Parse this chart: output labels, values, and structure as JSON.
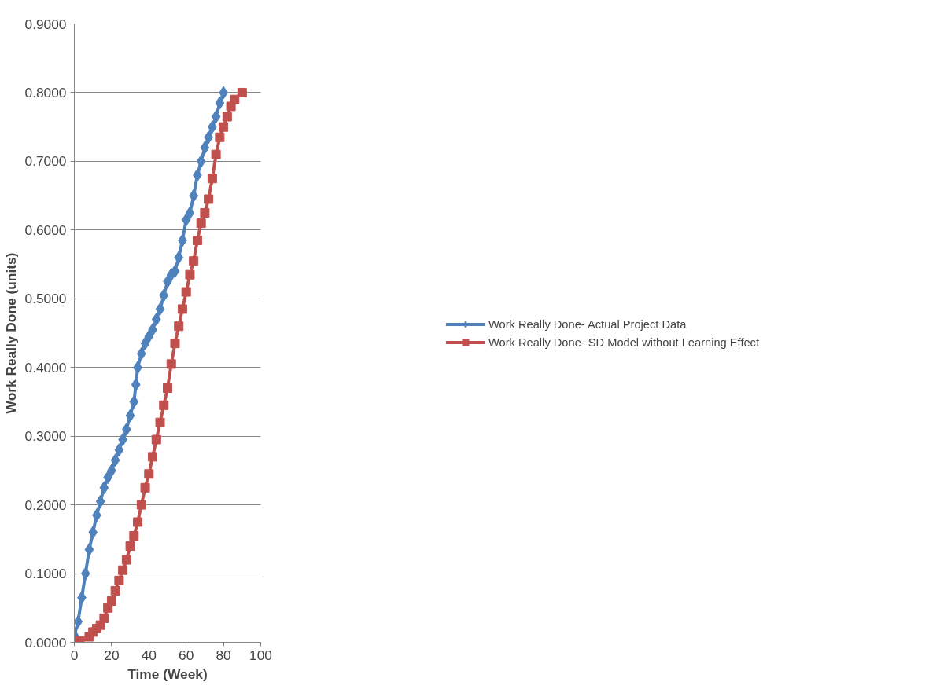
{
  "chart_data": {
    "type": "line",
    "xlabel": "Time (Week)",
    "ylabel": "Work Really Done (units)",
    "xlim": [
      0,
      100
    ],
    "xticks": [
      0,
      20,
      40,
      60,
      80,
      100
    ],
    "ylim": [
      0,
      0.9
    ],
    "yticks": [
      {
        "value": 0,
        "label": "0.0000"
      },
      {
        "value": 0.1,
        "label": "0.1000"
      },
      {
        "value": 0.2,
        "label": "0.2000"
      },
      {
        "value": 0.3,
        "label": "0.3000"
      },
      {
        "value": 0.4,
        "label": "0.4000"
      },
      {
        "value": 0.5,
        "label": "0.5000"
      },
      {
        "value": 0.6,
        "label": "0.6000"
      },
      {
        "value": 0.7,
        "label": "0.7000"
      },
      {
        "value": 0.8,
        "label": "0.8000"
      },
      {
        "value": 0.9,
        "label": "0.9000"
      }
    ],
    "grid": "y",
    "legend": "right",
    "line_style": "solid",
    "series": [
      {
        "name": "Work Really Done- Actual Project Data",
        "color": "#4f81bd",
        "marker": "diamond",
        "x": [
          0,
          2,
          4,
          6,
          8,
          10,
          12,
          14,
          16,
          18,
          20,
          22,
          24,
          26,
          28,
          30,
          32,
          33,
          34,
          36,
          38,
          40,
          42,
          44,
          46,
          48,
          50,
          52,
          54,
          56,
          58,
          60,
          62,
          64,
          66,
          68,
          70,
          72,
          74,
          76,
          78,
          80
        ],
        "values": [
          0.01,
          0.03,
          0.065,
          0.1,
          0.135,
          0.16,
          0.185,
          0.205,
          0.225,
          0.24,
          0.25,
          0.265,
          0.28,
          0.295,
          0.31,
          0.33,
          0.35,
          0.375,
          0.4,
          0.42,
          0.435,
          0.445,
          0.455,
          0.47,
          0.485,
          0.505,
          0.525,
          0.535,
          0.54,
          0.56,
          0.585,
          0.615,
          0.625,
          0.65,
          0.68,
          0.7,
          0.72,
          0.735,
          0.75,
          0.765,
          0.785,
          0.8
        ]
      },
      {
        "name": "Work Really Done- SD Model without Learning Effect",
        "color": "#c0504d",
        "marker": "square",
        "x": [
          0,
          3,
          8,
          10,
          12,
          14,
          16,
          18,
          20,
          22,
          24,
          26,
          28,
          30,
          32,
          34,
          36,
          38,
          40,
          42,
          44,
          46,
          48,
          50,
          52,
          54,
          56,
          58,
          60,
          62,
          64,
          66,
          68,
          70,
          72,
          74,
          76,
          78,
          80,
          82,
          84,
          86,
          90
        ],
        "values": [
          0,
          0.002,
          0.008,
          0.015,
          0.02,
          0.025,
          0.035,
          0.05,
          0.06,
          0.075,
          0.09,
          0.105,
          0.12,
          0.14,
          0.155,
          0.175,
          0.2,
          0.225,
          0.245,
          0.27,
          0.295,
          0.32,
          0.345,
          0.37,
          0.405,
          0.435,
          0.46,
          0.485,
          0.51,
          0.535,
          0.555,
          0.585,
          0.61,
          0.625,
          0.645,
          0.675,
          0.71,
          0.735,
          0.75,
          0.765,
          0.78,
          0.79,
          0.8
        ]
      }
    ]
  }
}
